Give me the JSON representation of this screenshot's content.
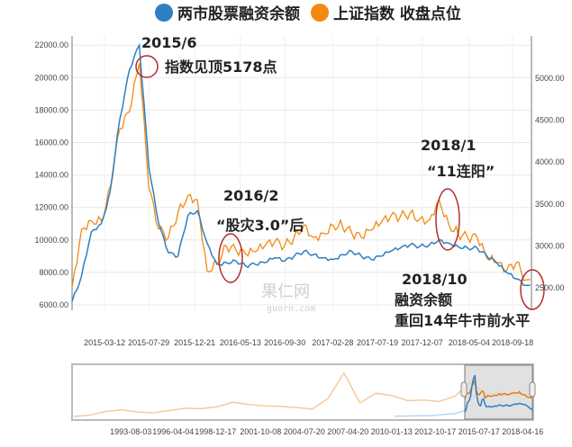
{
  "chart_data": {
    "type": "line",
    "legend": {
      "placement": "top-right",
      "items": [
        {
          "name": "两市股票融资余额",
          "color": "#2f7fc1"
        },
        {
          "name": "上证指数 收盘点位",
          "color": "#f28a12"
        }
      ]
    },
    "x_ticks": [
      "2015-03-12",
      "2015-07-29",
      "2015-12-21",
      "2016-05-13",
      "2016-09-30",
      "2017-02-28",
      "2017-07-19",
      "2017-12-07",
      "2018-05-04",
      "2018-09-18"
    ],
    "x_range": [
      "2014-11-01",
      "2018-10-19"
    ],
    "left_axis": {
      "ticks": [
        "22000.00",
        "20000.00",
        "18000.00",
        "16000.00",
        "14000.00",
        "12000.00",
        "10000.00",
        "8000.00",
        "6000.00"
      ],
      "range": [
        6000,
        22000
      ]
    },
    "right_axis": {
      "ticks": [
        "5000.00",
        "4500.00",
        "4000.00",
        "3500.00",
        "3000.00",
        "2500.00"
      ],
      "range": [
        2500,
        5000
      ]
    },
    "dates": [
      "2014-11",
      "2014-12",
      "2015-01",
      "2015-02",
      "2015-03",
      "2015-04",
      "2015-05",
      "2015-06",
      "2015-07",
      "2015-08",
      "2015-09",
      "2015-10",
      "2015-11",
      "2015-12",
      "2016-01",
      "2016-02",
      "2016-03",
      "2016-04",
      "2016-05",
      "2016-06",
      "2016-07",
      "2016-08",
      "2016-09",
      "2016-10",
      "2016-11",
      "2016-12",
      "2017-01",
      "2017-02",
      "2017-03",
      "2017-04",
      "2017-05",
      "2017-06",
      "2017-07",
      "2017-08",
      "2017-09",
      "2017-10",
      "2017-11",
      "2017-12",
      "2018-01",
      "2018-02",
      "2018-03",
      "2018-04",
      "2018-05",
      "2018-06",
      "2018-07",
      "2018-08",
      "2018-09",
      "2018-10"
    ],
    "series": [
      {
        "name": "两市股票融资余额",
        "axis": "left",
        "values": [
          6200,
          7800,
          10500,
          11000,
          13000,
          17500,
          20500,
          22000,
          14500,
          11000,
          9200,
          9000,
          11500,
          11800,
          9800,
          8500,
          8600,
          8700,
          8400,
          8500,
          8600,
          8900,
          8700,
          9000,
          9300,
          9100,
          8900,
          8800,
          9100,
          9300,
          9000,
          8800,
          9000,
          9300,
          9500,
          9700,
          9600,
          9700,
          10000,
          9800,
          9600,
          9500,
          9500,
          9000,
          8600,
          8000,
          7600,
          7200
        ]
      },
      {
        "name": "上证指数 收盘点位",
        "axis": "right",
        "values": [
          2500,
          3200,
          3300,
          3300,
          3700,
          4400,
          4600,
          5178,
          3700,
          3200,
          3100,
          3400,
          3600,
          3550,
          2700,
          2800,
          3000,
          2950,
          2900,
          2930,
          3000,
          3050,
          3000,
          3100,
          3250,
          3100,
          3150,
          3240,
          3250,
          3150,
          3100,
          3190,
          3270,
          3350,
          3350,
          3390,
          3320,
          3310,
          3550,
          3250,
          3150,
          3100,
          3100,
          2850,
          2800,
          2700,
          2800,
          2600
        ]
      }
    ],
    "annotations": [
      {
        "lines": [
          "2015/6",
          "指数见顶5178点"
        ]
      },
      {
        "lines": [
          "2016/2",
          "“股灾3.0”后"
        ]
      },
      {
        "lines": [
          "2018/1",
          "“11连阳”"
        ]
      },
      {
        "lines": [
          "2018/10",
          "融资余额",
          "重回14年牛市前水平"
        ]
      }
    ],
    "navigator": {
      "x_ticks": [
        "1993-08-03",
        "1996-04-04",
        "1998-12-17",
        "2001-10-08",
        "2004-07-20",
        "2007-04-20",
        "2010-01-13",
        "2012-10-17",
        "2015-07-17",
        "2018-04-16"
      ],
      "index_years": [
        1990,
        1991,
        1992,
        1993,
        1994,
        1995,
        1996,
        1997,
        1998,
        1999,
        2000,
        2001,
        2002,
        2003,
        2004,
        2005,
        2006,
        2007,
        2008,
        2009,
        2010,
        2011,
        2012,
        2013,
        2014,
        2015,
        2016,
        2017,
        2018
      ],
      "index_values": [
        120,
        290,
        780,
        1000,
        700,
        600,
        900,
        1200,
        1150,
        1400,
        2000,
        1700,
        1500,
        1450,
        1300,
        1100,
        2500,
        5900,
        1900,
        3200,
        2900,
        2200,
        2300,
        2100,
        2800,
        4800,
        3000,
        3300,
        2700
      ]
    },
    "watermark": {
      "name": "果仁网",
      "url": "guorn.com"
    }
  }
}
